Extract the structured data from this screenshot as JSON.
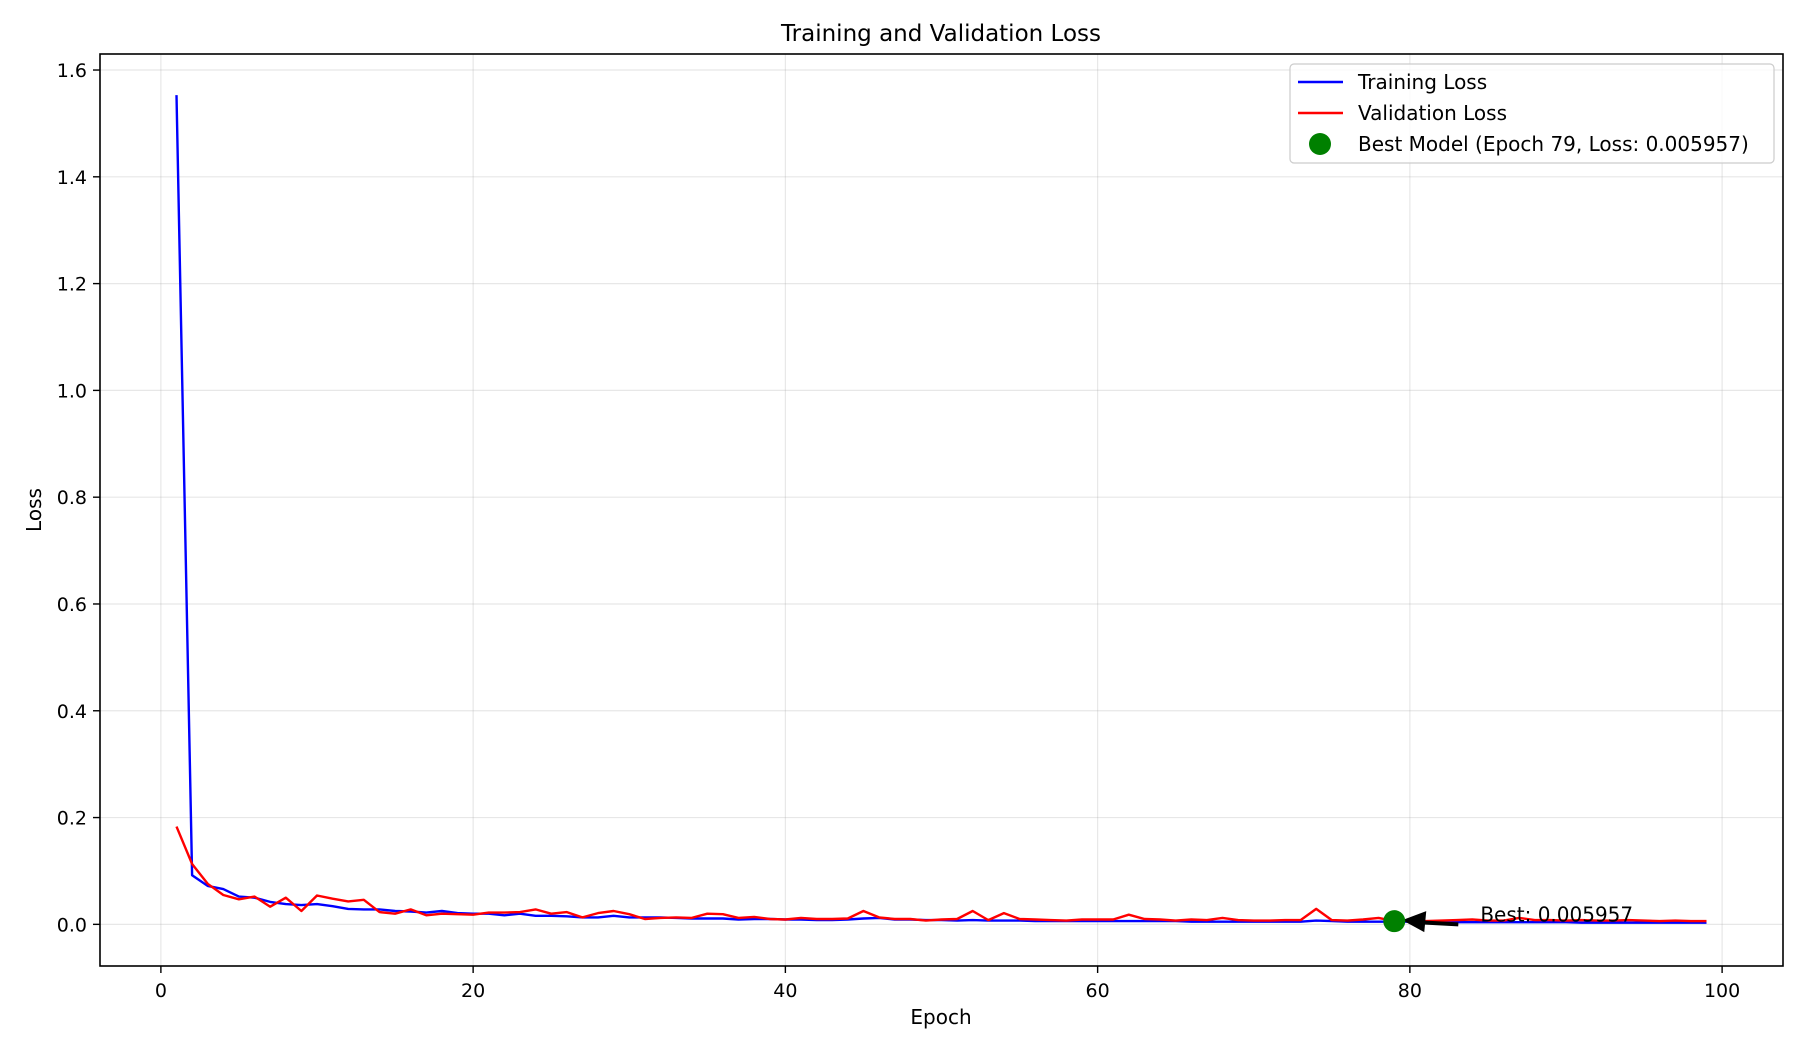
{
  "chart_data": {
    "type": "line",
    "title": "Training and Validation Loss",
    "xlabel": "Epoch",
    "ylabel": "Loss",
    "xlim": [
      -3.9,
      103.9
    ],
    "ylim": [
      -0.078,
      1.63
    ],
    "xticks": [
      0,
      20,
      40,
      60,
      80,
      100
    ],
    "yticks": [
      0.0,
      0.2,
      0.4,
      0.6,
      0.8,
      1.0,
      1.2,
      1.4,
      1.6
    ],
    "grid": true,
    "legend_position": "top-right",
    "series": [
      {
        "name": "Training Loss",
        "color": "#0000ff",
        "x": [
          1,
          2,
          3,
          4,
          5,
          6,
          7,
          8,
          9,
          10,
          11,
          12,
          13,
          14,
          15,
          16,
          17,
          18,
          19,
          20,
          21,
          22,
          23,
          24,
          25,
          26,
          27,
          28,
          29,
          30,
          31,
          32,
          33,
          34,
          35,
          36,
          37,
          38,
          39,
          40,
          41,
          42,
          43,
          44,
          45,
          46,
          47,
          48,
          49,
          50,
          51,
          52,
          53,
          54,
          55,
          56,
          57,
          58,
          59,
          60,
          61,
          62,
          63,
          64,
          65,
          66,
          67,
          68,
          69,
          70,
          71,
          72,
          73,
          74,
          75,
          76,
          77,
          78,
          79,
          80,
          81,
          82,
          83,
          84,
          85,
          86,
          87,
          88,
          89,
          90,
          91,
          92,
          93,
          94,
          95,
          96,
          97,
          98,
          99
        ],
        "y": [
          1.553,
          0.092,
          0.072,
          0.066,
          0.052,
          0.05,
          0.042,
          0.038,
          0.036,
          0.038,
          0.034,
          0.029,
          0.028,
          0.028,
          0.025,
          0.024,
          0.022,
          0.025,
          0.021,
          0.02,
          0.02,
          0.017,
          0.02,
          0.016,
          0.016,
          0.015,
          0.013,
          0.013,
          0.016,
          0.013,
          0.013,
          0.013,
          0.012,
          0.011,
          0.011,
          0.011,
          0.009,
          0.01,
          0.01,
          0.009,
          0.009,
          0.008,
          0.008,
          0.009,
          0.011,
          0.012,
          0.009,
          0.009,
          0.008,
          0.008,
          0.007,
          0.008,
          0.007,
          0.007,
          0.007,
          0.006,
          0.006,
          0.006,
          0.006,
          0.006,
          0.006,
          0.006,
          0.006,
          0.006,
          0.006,
          0.005,
          0.005,
          0.005,
          0.005,
          0.005,
          0.005,
          0.005,
          0.005,
          0.007,
          0.006,
          0.005,
          0.005,
          0.005,
          0.005,
          0.005,
          0.005,
          0.005,
          0.004,
          0.004,
          0.004,
          0.004,
          0.004,
          0.004,
          0.004,
          0.004,
          0.003,
          0.003,
          0.003,
          0.003,
          0.003,
          0.003,
          0.003,
          0.003,
          0.003
        ]
      },
      {
        "name": "Validation Loss",
        "color": "#ff0000",
        "x": [
          1,
          2,
          3,
          4,
          5,
          6,
          7,
          8,
          9,
          10,
          11,
          12,
          13,
          14,
          15,
          16,
          17,
          18,
          19,
          20,
          21,
          22,
          23,
          24,
          25,
          26,
          27,
          28,
          29,
          30,
          31,
          32,
          33,
          34,
          35,
          36,
          37,
          38,
          39,
          40,
          41,
          42,
          43,
          44,
          45,
          46,
          47,
          48,
          49,
          50,
          51,
          52,
          53,
          54,
          55,
          56,
          57,
          58,
          59,
          60,
          61,
          62,
          63,
          64,
          65,
          66,
          67,
          68,
          69,
          70,
          71,
          72,
          73,
          74,
          75,
          76,
          77,
          78,
          79,
          80,
          81,
          82,
          83,
          84,
          85,
          86,
          87,
          88,
          89,
          90,
          91,
          92,
          93,
          94,
          95,
          96,
          97,
          98,
          99
        ],
        "y": [
          0.183,
          0.113,
          0.076,
          0.055,
          0.047,
          0.052,
          0.033,
          0.05,
          0.025,
          0.054,
          0.048,
          0.043,
          0.046,
          0.023,
          0.02,
          0.028,
          0.017,
          0.02,
          0.019,
          0.018,
          0.022,
          0.022,
          0.023,
          0.028,
          0.02,
          0.023,
          0.013,
          0.021,
          0.025,
          0.019,
          0.01,
          0.012,
          0.013,
          0.012,
          0.02,
          0.019,
          0.012,
          0.014,
          0.01,
          0.009,
          0.012,
          0.01,
          0.01,
          0.011,
          0.025,
          0.013,
          0.01,
          0.01,
          0.007,
          0.009,
          0.01,
          0.025,
          0.008,
          0.021,
          0.01,
          0.009,
          0.008,
          0.007,
          0.009,
          0.009,
          0.009,
          0.018,
          0.01,
          0.009,
          0.007,
          0.009,
          0.008,
          0.012,
          0.008,
          0.007,
          0.007,
          0.008,
          0.008,
          0.029,
          0.008,
          0.007,
          0.009,
          0.012,
          0.006,
          0.008,
          0.006,
          0.007,
          0.008,
          0.009,
          0.007,
          0.007,
          0.012,
          0.008,
          0.008,
          0.007,
          0.008,
          0.007,
          0.007,
          0.008,
          0.007,
          0.006,
          0.007,
          0.006,
          0.006
        ]
      }
    ],
    "best_model": {
      "label": "Best Model (Epoch 79, Loss: 0.005957)",
      "epoch": 79,
      "loss": 0.005957,
      "color": "#008000"
    },
    "annotation": {
      "text": "Best: 0.005957",
      "text_x": 84,
      "text_y": 0.0,
      "arrow_to_x": 79,
      "arrow_to_y": 0.005957
    }
  }
}
